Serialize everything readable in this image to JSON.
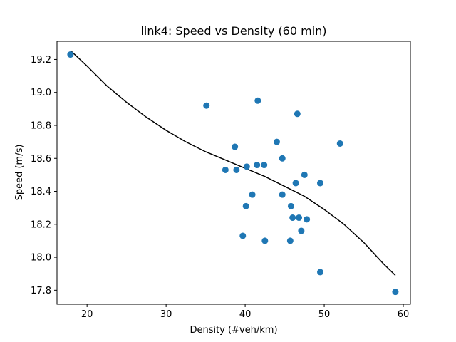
{
  "chart_data": {
    "type": "scatter",
    "title": "link4: Speed vs Density (60 min)",
    "xlabel": "Density (#veh/km)",
    "ylabel": "Speed (m/s)",
    "xlim": [
      16.2,
      60.9
    ],
    "ylim": [
      17.715,
      19.31
    ],
    "xticks": [
      20,
      30,
      40,
      50,
      60
    ],
    "yticks": [
      17.8,
      18.0,
      18.2,
      18.4,
      18.6,
      18.8,
      19.0,
      19.2
    ],
    "grid": false,
    "colors": {
      "points": "#1f77b4",
      "fit": "#000000"
    },
    "series": [
      {
        "kind": "scatter",
        "x": [
          17.9,
          35.1,
          41.6,
          46.6,
          44.0,
          52.0,
          38.7,
          44.7,
          37.5,
          38.9,
          40.2,
          41.5,
          42.4,
          47.5,
          46.4,
          49.5,
          40.9,
          44.7,
          40.1,
          45.8,
          46.0,
          46.8,
          47.8,
          47.1,
          39.7,
          42.5,
          45.7,
          49.5,
          59.0
        ],
        "y": [
          19.23,
          18.92,
          18.95,
          18.87,
          18.7,
          18.69,
          18.67,
          18.6,
          18.53,
          18.53,
          18.55,
          18.56,
          18.56,
          18.5,
          18.45,
          18.45,
          18.38,
          18.38,
          18.31,
          18.31,
          18.24,
          18.24,
          18.23,
          18.16,
          18.13,
          18.1,
          18.1,
          17.91,
          17.79
        ]
      },
      {
        "kind": "line",
        "x": [
          18,
          20,
          22.5,
          25,
          27.5,
          30,
          32.5,
          35,
          37.5,
          40,
          42.5,
          45,
          47.5,
          50,
          52.5,
          55,
          57.5,
          59
        ],
        "y": [
          19.25,
          19.16,
          19.04,
          18.94,
          18.85,
          18.77,
          18.7,
          18.64,
          18.59,
          18.54,
          18.49,
          18.43,
          18.37,
          18.29,
          18.2,
          18.09,
          17.96,
          17.89
        ]
      }
    ]
  }
}
